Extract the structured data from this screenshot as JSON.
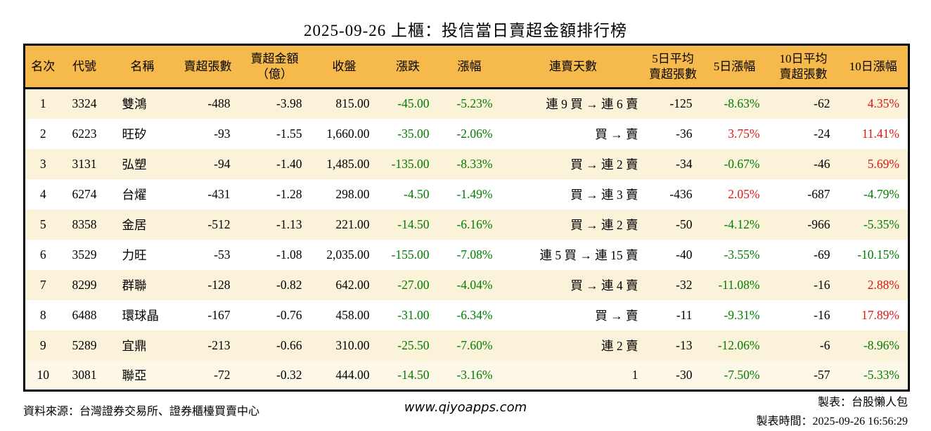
{
  "title": "2025-09-26 上櫃：投信當日賣超金額排行榜",
  "table": {
    "columns": [
      {
        "key": "rank",
        "label": "名次"
      },
      {
        "key": "code",
        "label": "代號"
      },
      {
        "key": "name",
        "label": "名稱"
      },
      {
        "key": "net_sell_lots",
        "label": "賣超張數"
      },
      {
        "key": "net_sell_amount",
        "label": "賣超金額\n（億）"
      },
      {
        "key": "close",
        "label": "收盤"
      },
      {
        "key": "change",
        "label": "漲跌"
      },
      {
        "key": "change_pct",
        "label": "漲幅"
      },
      {
        "key": "streak",
        "label": "連賣天數"
      },
      {
        "key": "avg5_lots",
        "label": "5日平均\n賣超張數"
      },
      {
        "key": "pct5",
        "label": "5日漲幅"
      },
      {
        "key": "avg10_lots",
        "label": "10日平均\n賣超張數"
      },
      {
        "key": "pct10",
        "label": "10日漲幅"
      }
    ],
    "rows": [
      [
        "1",
        "3324",
        "雙鴻",
        "-488",
        "-3.98",
        "815.00",
        "-45.00",
        "-5.23%",
        "連 9 買 → 連 6 賣",
        "-125",
        "-8.63%",
        "-62",
        "4.35%"
      ],
      [
        "2",
        "6223",
        "旺矽",
        "-93",
        "-1.55",
        "1,660.00",
        "-35.00",
        "-2.06%",
        "買 → 賣",
        "-36",
        "3.75%",
        "-24",
        "11.41%"
      ],
      [
        "3",
        "3131",
        "弘塑",
        "-94",
        "-1.40",
        "1,485.00",
        "-135.00",
        "-8.33%",
        "買 → 連 2 賣",
        "-34",
        "-0.67%",
        "-46",
        "5.69%"
      ],
      [
        "4",
        "6274",
        "台燿",
        "-431",
        "-1.28",
        "298.00",
        "-4.50",
        "-1.49%",
        "買 → 連 3 賣",
        "-436",
        "2.05%",
        "-687",
        "-4.79%"
      ],
      [
        "5",
        "8358",
        "金居",
        "-512",
        "-1.13",
        "221.00",
        "-14.50",
        "-6.16%",
        "買 → 連 2 賣",
        "-50",
        "-4.12%",
        "-966",
        "-5.35%"
      ],
      [
        "6",
        "3529",
        "力旺",
        "-53",
        "-1.08",
        "2,035.00",
        "-155.00",
        "-7.08%",
        "連 5 買 → 連 15 賣",
        "-40",
        "-3.55%",
        "-69",
        "-10.15%"
      ],
      [
        "7",
        "8299",
        "群聯",
        "-128",
        "-0.82",
        "642.00",
        "-27.00",
        "-4.04%",
        "買 → 連 4 賣",
        "-32",
        "-11.08%",
        "-16",
        "2.88%"
      ],
      [
        "8",
        "6488",
        "環球晶",
        "-167",
        "-0.76",
        "458.00",
        "-31.00",
        "-6.34%",
        "買 → 賣",
        "-11",
        "-9.31%",
        "-16",
        "17.89%"
      ],
      [
        "9",
        "5289",
        "宜鼎",
        "-213",
        "-0.66",
        "310.00",
        "-25.50",
        "-7.60%",
        "連 2 賣",
        "-13",
        "-12.06%",
        "-6",
        "-8.96%"
      ],
      [
        "10",
        "3081",
        "聯亞",
        "-72",
        "-0.32",
        "444.00",
        "-14.50",
        "-3.16%",
        "1",
        "-30",
        "-7.50%",
        "-57",
        "-5.33%"
      ]
    ]
  },
  "footer": {
    "source": "資料來源：台灣證券交易所、證券櫃檯買賣中心",
    "site": "www.qiyoapps.com",
    "maker": "製表：台股懶人包",
    "made_at": "製表時間：2025-09-26 16:56:29"
  },
  "colors": {
    "header_bg": "#f6b94c",
    "row_stripe": "#fbf2da",
    "row_last": "#fdf7e8",
    "up_red": "#e01515",
    "down_green": "#007d00",
    "border": "#000000"
  }
}
